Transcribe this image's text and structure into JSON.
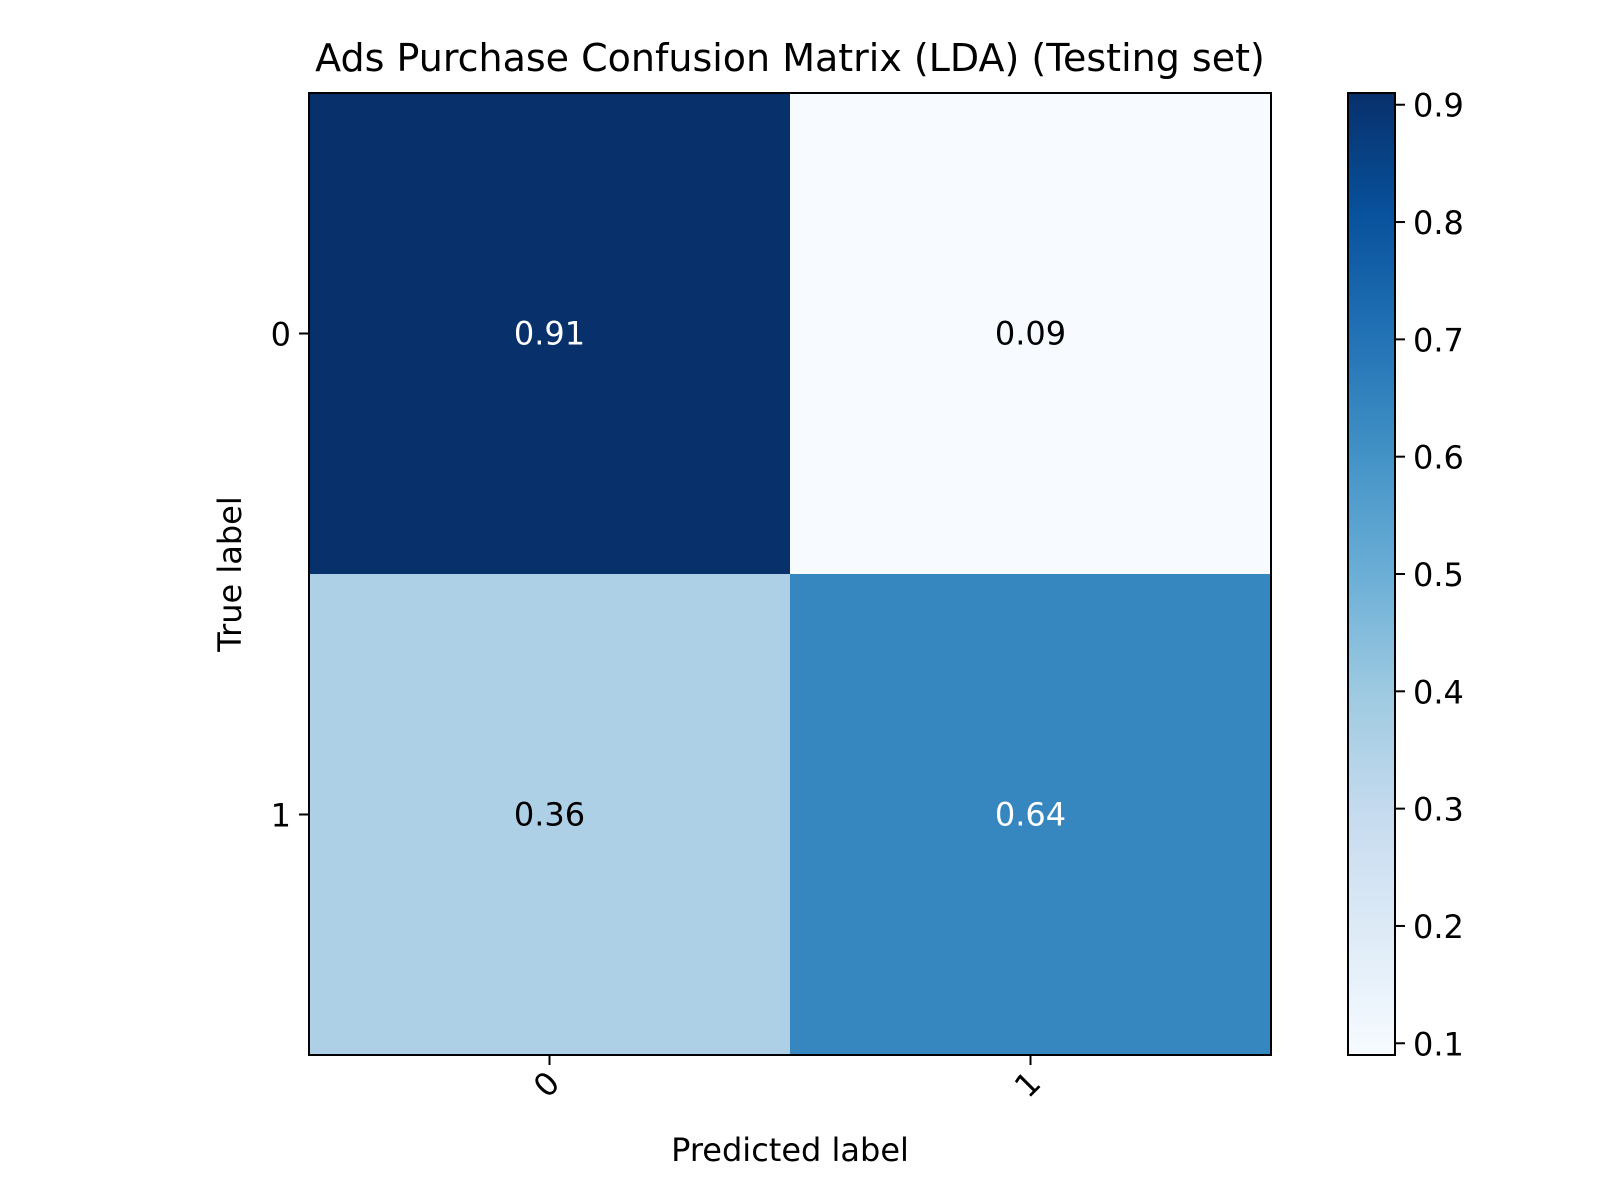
{
  "chart_data": {
    "type": "heatmap",
    "title": "Ads Purchase Confusion Matrix (LDA) (Testing set)",
    "xlabel": "Predicted label",
    "ylabel": "True label",
    "x_categories": [
      "0",
      "1"
    ],
    "y_categories": [
      "0",
      "1"
    ],
    "values": [
      [
        0.91,
        0.09
      ],
      [
        0.36,
        0.64
      ]
    ],
    "cell_labels": [
      [
        "0.91",
        "0.09"
      ],
      [
        "0.36",
        "0.64"
      ]
    ],
    "colormap": "Blues",
    "colorbar": {
      "range": [
        0.09,
        0.91
      ],
      "ticks": [
        0.1,
        0.2,
        0.3,
        0.4,
        0.5,
        0.6,
        0.7,
        0.8,
        0.9
      ],
      "tick_labels": [
        "0.1",
        "0.2",
        "0.3",
        "0.4",
        "0.5",
        "0.6",
        "0.7",
        "0.8",
        "0.9"
      ]
    },
    "grid": false,
    "x_tick_rotation": "45 degrees"
  }
}
